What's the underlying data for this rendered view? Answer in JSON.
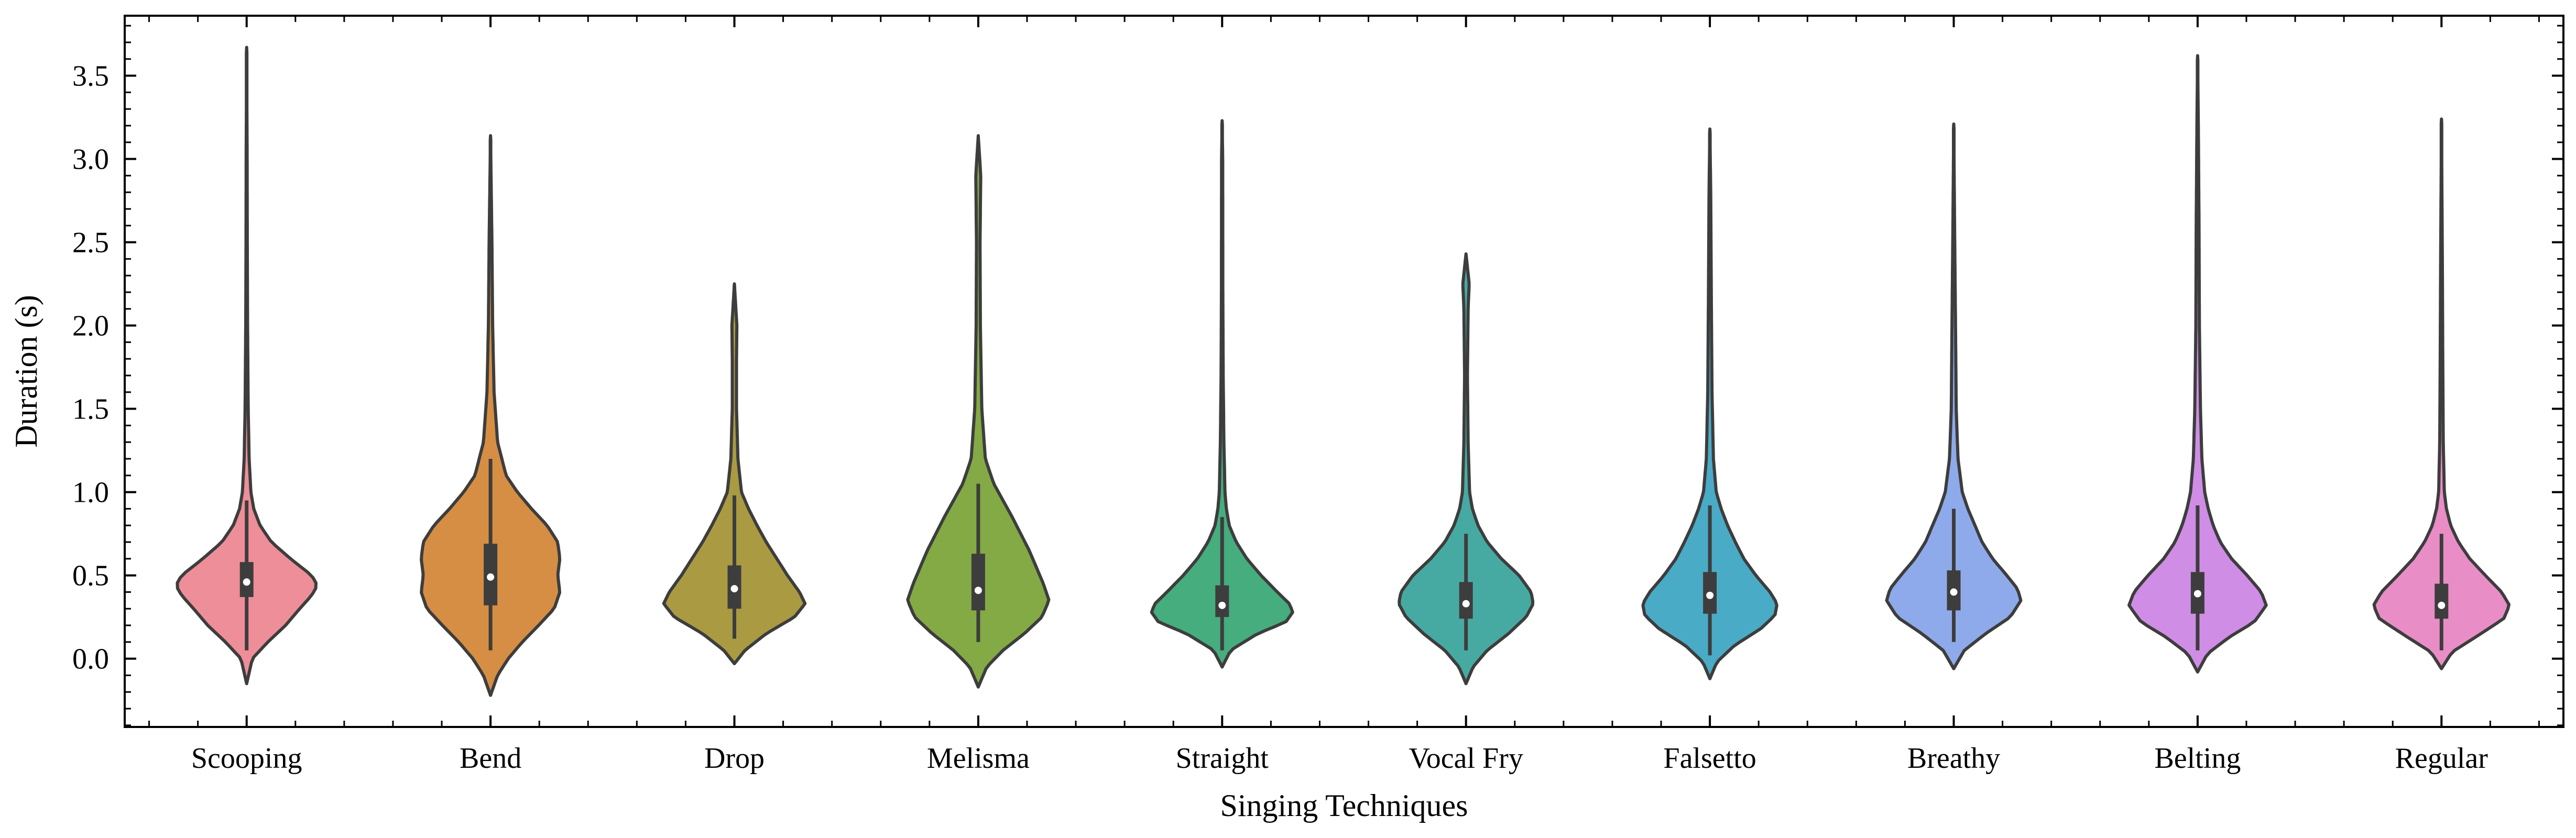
{
  "chart_data": {
    "type": "violin",
    "title": "",
    "xlabel": "Singing Techniques",
    "ylabel": "Duration (s)",
    "ylim": [
      -0.41,
      3.86
    ],
    "yticks": [
      0.0,
      0.5,
      1.0,
      1.5,
      2.0,
      2.5,
      3.0,
      3.5
    ],
    "ytick_labels": [
      "0.0",
      "0.5",
      "1.0",
      "1.5",
      "2.0",
      "2.5",
      "3.0",
      "3.5"
    ],
    "grid": false,
    "legend": "none",
    "categories": [
      "Scooping",
      "Bend",
      "Drop",
      "Melisma",
      "Straight",
      "Vocal Fry",
      "Falsetto",
      "Breathy",
      "Belting",
      "Regular"
    ],
    "violins": [
      {
        "label": "Scooping",
        "color": "#ee8e98",
        "min": -0.15,
        "max": 3.67,
        "q1": 0.37,
        "median": 0.46,
        "q3": 0.58,
        "whisker_low": 0.05,
        "whisker_high": 0.95,
        "peak": 0.44,
        "peak_width": 1.0,
        "profile": [
          [
            -0.15,
            0.0
          ],
          [
            0.0,
            0.08
          ],
          [
            0.1,
            0.3
          ],
          [
            0.2,
            0.55
          ],
          [
            0.3,
            0.75
          ],
          [
            0.38,
            0.92
          ],
          [
            0.44,
            1.0
          ],
          [
            0.5,
            0.92
          ],
          [
            0.6,
            0.62
          ],
          [
            0.7,
            0.35
          ],
          [
            0.8,
            0.19
          ],
          [
            0.9,
            0.1
          ],
          [
            1.0,
            0.06
          ],
          [
            1.2,
            0.035
          ],
          [
            1.5,
            0.022
          ],
          [
            2.0,
            0.013
          ],
          [
            2.5,
            0.009
          ],
          [
            3.0,
            0.007
          ],
          [
            3.67,
            0.0
          ]
        ]
      },
      {
        "label": "Bend",
        "color": "#d68e44",
        "min": -0.22,
        "max": 3.14,
        "q1": 0.32,
        "median": 0.49,
        "q3": 0.69,
        "whisker_low": 0.05,
        "whisker_high": 1.2,
        "peak": 0.5,
        "peak_width": 0.72,
        "profile": [
          [
            -0.22,
            0.0
          ],
          [
            -0.1,
            0.1
          ],
          [
            0.0,
            0.25
          ],
          [
            0.1,
            0.45
          ],
          [
            0.2,
            0.68
          ],
          [
            0.3,
            0.9
          ],
          [
            0.4,
            0.98
          ],
          [
            0.5,
            0.95
          ],
          [
            0.6,
            0.98
          ],
          [
            0.7,
            0.95
          ],
          [
            0.8,
            0.8
          ],
          [
            0.9,
            0.58
          ],
          [
            1.0,
            0.38
          ],
          [
            1.1,
            0.22
          ],
          [
            1.3,
            0.1
          ],
          [
            1.6,
            0.05
          ],
          [
            2.0,
            0.03
          ],
          [
            2.5,
            0.02
          ],
          [
            3.14,
            0.0
          ]
        ]
      },
      {
        "label": "Drop",
        "color": "#aa9a42",
        "min": -0.03,
        "max": 2.25,
        "q1": 0.3,
        "median": 0.42,
        "q3": 0.56,
        "whisker_low": 0.12,
        "whisker_high": 0.98,
        "peak": 0.33,
        "peak_width": 1.0,
        "profile": [
          [
            -0.03,
            0.0
          ],
          [
            0.05,
            0.15
          ],
          [
            0.15,
            0.45
          ],
          [
            0.25,
            0.85
          ],
          [
            0.33,
            1.0
          ],
          [
            0.4,
            0.92
          ],
          [
            0.5,
            0.75
          ],
          [
            0.6,
            0.6
          ],
          [
            0.7,
            0.45
          ],
          [
            0.8,
            0.32
          ],
          [
            0.9,
            0.2
          ],
          [
            1.0,
            0.1
          ],
          [
            1.2,
            0.05
          ],
          [
            1.5,
            0.03
          ],
          [
            1.8,
            0.03
          ],
          [
            2.0,
            0.035
          ],
          [
            2.25,
            0.0
          ]
        ]
      },
      {
        "label": "Melisma",
        "color": "#83aa44",
        "min": -0.17,
        "max": 3.14,
        "q1": 0.29,
        "median": 0.41,
        "q3": 0.63,
        "whisker_low": 0.1,
        "whisker_high": 1.05,
        "peak": 0.35,
        "peak_width": 0.88,
        "profile": [
          [
            -0.17,
            0.0
          ],
          [
            -0.05,
            0.12
          ],
          [
            0.05,
            0.35
          ],
          [
            0.15,
            0.65
          ],
          [
            0.25,
            0.9
          ],
          [
            0.35,
            1.0
          ],
          [
            0.45,
            0.92
          ],
          [
            0.55,
            0.82
          ],
          [
            0.65,
            0.72
          ],
          [
            0.75,
            0.6
          ],
          [
            0.85,
            0.48
          ],
          [
            0.95,
            0.35
          ],
          [
            1.05,
            0.22
          ],
          [
            1.2,
            0.1
          ],
          [
            1.5,
            0.05
          ],
          [
            2.0,
            0.03
          ],
          [
            2.5,
            0.025
          ],
          [
            2.9,
            0.035
          ],
          [
            3.14,
            0.0
          ]
        ]
      },
      {
        "label": "Straight",
        "color": "#45ad7e",
        "min": -0.05,
        "max": 3.23,
        "q1": 0.25,
        "median": 0.32,
        "q3": 0.44,
        "whisker_low": 0.05,
        "whisker_high": 0.85,
        "peak": 0.28,
        "peak_width": 1.0,
        "profile": [
          [
            -0.05,
            0.0
          ],
          [
            0.05,
            0.12
          ],
          [
            0.15,
            0.5
          ],
          [
            0.22,
            0.9
          ],
          [
            0.28,
            1.0
          ],
          [
            0.33,
            0.95
          ],
          [
            0.4,
            0.78
          ],
          [
            0.5,
            0.55
          ],
          [
            0.6,
            0.35
          ],
          [
            0.7,
            0.2
          ],
          [
            0.8,
            0.1
          ],
          [
            0.9,
            0.06
          ],
          [
            1.0,
            0.04
          ],
          [
            1.3,
            0.025
          ],
          [
            1.7,
            0.015
          ],
          [
            2.2,
            0.01
          ],
          [
            3.0,
            0.008
          ],
          [
            3.23,
            0.0
          ]
        ]
      },
      {
        "label": "Vocal Fry",
        "color": "#47aaa2",
        "min": -0.15,
        "max": 2.43,
        "q1": 0.24,
        "median": 0.33,
        "q3": 0.46,
        "whisker_low": 0.05,
        "whisker_high": 0.75,
        "peak": 0.33,
        "peak_width": 0.88,
        "profile": [
          [
            -0.15,
            0.0
          ],
          [
            -0.05,
            0.1
          ],
          [
            0.05,
            0.3
          ],
          [
            0.15,
            0.6
          ],
          [
            0.25,
            0.85
          ],
          [
            0.33,
            0.95
          ],
          [
            0.4,
            0.92
          ],
          [
            0.5,
            0.75
          ],
          [
            0.6,
            0.5
          ],
          [
            0.7,
            0.3
          ],
          [
            0.8,
            0.17
          ],
          [
            0.9,
            0.09
          ],
          [
            1.0,
            0.05
          ],
          [
            1.3,
            0.03
          ],
          [
            1.7,
            0.02
          ],
          [
            2.1,
            0.03
          ],
          [
            2.25,
            0.045
          ],
          [
            2.43,
            0.0
          ]
        ]
      },
      {
        "label": "Falsetto",
        "color": "#4aabc6",
        "min": -0.12,
        "max": 3.18,
        "q1": 0.27,
        "median": 0.38,
        "q3": 0.52,
        "whisker_low": 0.02,
        "whisker_high": 0.92,
        "peak": 0.3,
        "peak_width": 0.9,
        "profile": [
          [
            -0.12,
            0.0
          ],
          [
            -0.02,
            0.1
          ],
          [
            0.08,
            0.35
          ],
          [
            0.18,
            0.72
          ],
          [
            0.26,
            0.92
          ],
          [
            0.33,
            0.95
          ],
          [
            0.4,
            0.85
          ],
          [
            0.5,
            0.65
          ],
          [
            0.6,
            0.48
          ],
          [
            0.7,
            0.36
          ],
          [
            0.8,
            0.25
          ],
          [
            0.9,
            0.16
          ],
          [
            1.0,
            0.09
          ],
          [
            1.2,
            0.05
          ],
          [
            1.6,
            0.03
          ],
          [
            2.2,
            0.02
          ],
          [
            2.8,
            0.012
          ],
          [
            3.18,
            0.0
          ]
        ]
      },
      {
        "label": "Breathy",
        "color": "#8eaaea",
        "min": -0.06,
        "max": 3.21,
        "q1": 0.29,
        "median": 0.4,
        "q3": 0.53,
        "whisker_low": 0.1,
        "whisker_high": 0.9,
        "peak": 0.35,
        "peak_width": 0.9,
        "profile": [
          [
            -0.06,
            0.0
          ],
          [
            0.05,
            0.15
          ],
          [
            0.15,
            0.45
          ],
          [
            0.25,
            0.8
          ],
          [
            0.35,
            0.95
          ],
          [
            0.42,
            0.9
          ],
          [
            0.5,
            0.75
          ],
          [
            0.6,
            0.55
          ],
          [
            0.7,
            0.4
          ],
          [
            0.8,
            0.3
          ],
          [
            0.9,
            0.2
          ],
          [
            1.0,
            0.12
          ],
          [
            1.2,
            0.06
          ],
          [
            1.5,
            0.035
          ],
          [
            2.0,
            0.025
          ],
          [
            2.6,
            0.012
          ],
          [
            3.21,
            0.0
          ]
        ]
      },
      {
        "label": "Belting",
        "color": "#cf8de6",
        "min": -0.08,
        "max": 3.62,
        "q1": 0.27,
        "median": 0.39,
        "q3": 0.52,
        "whisker_low": 0.05,
        "whisker_high": 0.92,
        "peak": 0.32,
        "peak_width": 0.97,
        "profile": [
          [
            -0.08,
            0.0
          ],
          [
            0.03,
            0.14
          ],
          [
            0.13,
            0.45
          ],
          [
            0.22,
            0.8
          ],
          [
            0.32,
            0.97
          ],
          [
            0.4,
            0.9
          ],
          [
            0.5,
            0.7
          ],
          [
            0.6,
            0.48
          ],
          [
            0.7,
            0.32
          ],
          [
            0.8,
            0.22
          ],
          [
            0.9,
            0.15
          ],
          [
            1.0,
            0.1
          ],
          [
            1.2,
            0.06
          ],
          [
            1.5,
            0.04
          ],
          [
            2.0,
            0.025
          ],
          [
            2.6,
            0.02
          ],
          [
            3.2,
            0.01
          ],
          [
            3.62,
            0.0
          ]
        ]
      },
      {
        "label": "Regular",
        "color": "#e98dc7",
        "min": -0.06,
        "max": 3.24,
        "q1": 0.24,
        "median": 0.32,
        "q3": 0.45,
        "whisker_low": 0.05,
        "whisker_high": 0.75,
        "peak": 0.32,
        "peak_width": 0.96,
        "profile": [
          [
            -0.06,
            0.0
          ],
          [
            0.04,
            0.15
          ],
          [
            0.14,
            0.52
          ],
          [
            0.24,
            0.88
          ],
          [
            0.32,
            0.96
          ],
          [
            0.4,
            0.85
          ],
          [
            0.5,
            0.62
          ],
          [
            0.6,
            0.4
          ],
          [
            0.7,
            0.24
          ],
          [
            0.8,
            0.13
          ],
          [
            0.9,
            0.07
          ],
          [
            1.0,
            0.04
          ],
          [
            1.3,
            0.025
          ],
          [
            1.8,
            0.018
          ],
          [
            2.4,
            0.012
          ],
          [
            3.24,
            0.0
          ]
        ]
      }
    ]
  }
}
